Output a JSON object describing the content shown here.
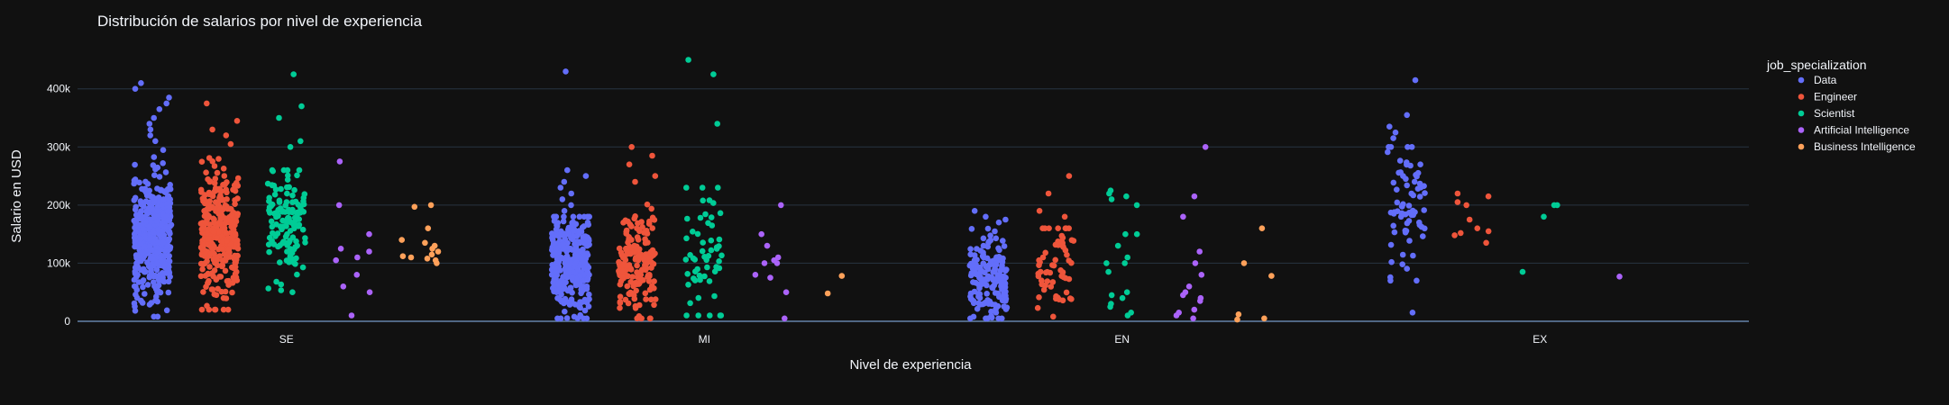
{
  "chart_data": {
    "type": "scatter",
    "title": "Distribución de salarios por nivel de experiencia",
    "xlabel": "Nivel de experiencia",
    "ylabel": "Salario en USD",
    "categories": [
      "SE",
      "MI",
      "EN",
      "EX"
    ],
    "ylim": [
      0,
      460000
    ],
    "yticks": [
      0,
      100000,
      200000,
      300000,
      400000
    ],
    "ytick_labels": [
      "0",
      "100k",
      "200k",
      "300k",
      "400k"
    ],
    "grid": true,
    "legend_title": "job_specialization",
    "legend_position": "right",
    "series": [
      {
        "name": "Data",
        "color": "#636efa",
        "groups": [
          {
            "category": "SE",
            "min": 8000,
            "max": 300000,
            "count": 420,
            "center": 145000,
            "spread": 55000,
            "outliers": [
              410000,
              400000,
              385000,
              375000,
              365000,
              350000,
              340000,
              330000,
              320000,
              310000
            ]
          },
          {
            "category": "MI",
            "min": 5000,
            "max": 180000,
            "count": 320,
            "center": 100000,
            "spread": 45000,
            "outliers": [
              430000,
              260000,
              250000,
              240000,
              230000,
              220000,
              210000,
              200000,
              190000
            ]
          },
          {
            "category": "EN",
            "min": 5000,
            "max": 160000,
            "count": 160,
            "center": 70000,
            "spread": 35000,
            "outliers": [
              190000,
              180000,
              175000,
              170000
            ]
          },
          {
            "category": "EX",
            "min": 70000,
            "max": 300000,
            "count": 70,
            "center": 200000,
            "spread": 55000,
            "outliers": [
              415000,
              355000,
              335000,
              325000,
              315000,
              15000
            ]
          }
        ]
      },
      {
        "name": "Engineer",
        "color": "#ef553b",
        "groups": [
          {
            "category": "SE",
            "min": 20000,
            "max": 295000,
            "count": 330,
            "center": 150000,
            "spread": 55000,
            "outliers": [
              375000,
              345000,
              330000,
              320000,
              305000
            ]
          },
          {
            "category": "MI",
            "min": 5000,
            "max": 230000,
            "count": 170,
            "center": 100000,
            "spread": 45000,
            "outliers": [
              300000,
              285000,
              270000,
              250000,
              240000
            ]
          },
          {
            "category": "EN",
            "min": 8000,
            "max": 160000,
            "count": 60,
            "center": 95000,
            "spread": 45000,
            "outliers": [
              250000,
              220000,
              190000,
              180000
            ]
          },
          {
            "category": "EX",
            "min": 135000,
            "max": 222000,
            "count": 0,
            "center": 170000,
            "spread": 30000,
            "outliers": [
              220000,
              215000,
              205000,
              200000,
              175000,
              160000,
              155000,
              152000,
              148000,
              135000
            ]
          }
        ]
      },
      {
        "name": "Scientist",
        "color": "#00cc96",
        "groups": [
          {
            "category": "SE",
            "min": 50000,
            "max": 260000,
            "count": 130,
            "center": 170000,
            "spread": 50000,
            "outliers": [
              425000,
              370000,
              350000,
              310000,
              300000
            ]
          },
          {
            "category": "MI",
            "min": 10000,
            "max": 230000,
            "count": 55,
            "center": 110000,
            "spread": 60000,
            "outliers": [
              450000,
              425000,
              340000
            ]
          },
          {
            "category": "EN",
            "min": 10000,
            "max": 225000,
            "count": 0,
            "center": 110000,
            "spread": 60000,
            "outliers": [
              225000,
              220000,
              215000,
              210000,
              200000,
              150000,
              150000,
              130000,
              110000,
              100000,
              100000,
              85000,
              50000,
              45000,
              40000,
              30000,
              25000,
              15000,
              10000
            ]
          },
          {
            "category": "EX",
            "min": 85000,
            "max": 200000,
            "count": 0,
            "center": 160000,
            "spread": 40000,
            "outliers": [
              200000,
              200000,
              180000,
              85000
            ]
          }
        ]
      },
      {
        "name": "Artificial Intelligence",
        "color": "#ab63fa",
        "groups": [
          {
            "category": "SE",
            "min": 10000,
            "max": 275000,
            "count": 0,
            "center": 120000,
            "spread": 60000,
            "outliers": [
              275000,
              200000,
              150000,
              125000,
              120000,
              110000,
              105000,
              80000,
              60000,
              50000,
              10000
            ]
          },
          {
            "category": "MI",
            "min": 5000,
            "max": 200000,
            "count": 0,
            "center": 100000,
            "spread": 40000,
            "outliers": [
              200000,
              150000,
              130000,
              110000,
              105000,
              100000,
              100000,
              80000,
              75000,
              50000,
              5000
            ]
          },
          {
            "category": "EN",
            "min": 5000,
            "max": 300000,
            "count": 0,
            "center": 80000,
            "spread": 50000,
            "outliers": [
              300000,
              215000,
              180000,
              120000,
              100000,
              80000,
              60000,
              50000,
              45000,
              40000,
              35000,
              20000,
              15000,
              10000,
              5000
            ]
          },
          {
            "category": "EX",
            "min": 77000,
            "max": 77000,
            "count": 0,
            "center": 77000,
            "spread": 1000,
            "outliers": [
              77000
            ]
          }
        ]
      },
      {
        "name": "Business Intelligence",
        "color": "#ffa15a",
        "groups": [
          {
            "category": "SE",
            "min": 100000,
            "max": 200000,
            "count": 0,
            "center": 130000,
            "spread": 30000,
            "outliers": [
              200000,
              197000,
              160000,
              140000,
              135000,
              130000,
              125000,
              120000,
              115000,
              112000,
              110000,
              108000,
              105000,
              100000
            ]
          },
          {
            "category": "MI",
            "min": 48000,
            "max": 78000,
            "count": 0,
            "center": 60000,
            "spread": 10000,
            "outliers": [
              78000,
              48000
            ]
          },
          {
            "category": "EN",
            "min": 3000,
            "max": 160000,
            "count": 0,
            "center": 80000,
            "spread": 50000,
            "outliers": [
              160000,
              100000,
              78000,
              12000,
              5000,
              3000
            ]
          }
        ]
      }
    ]
  }
}
